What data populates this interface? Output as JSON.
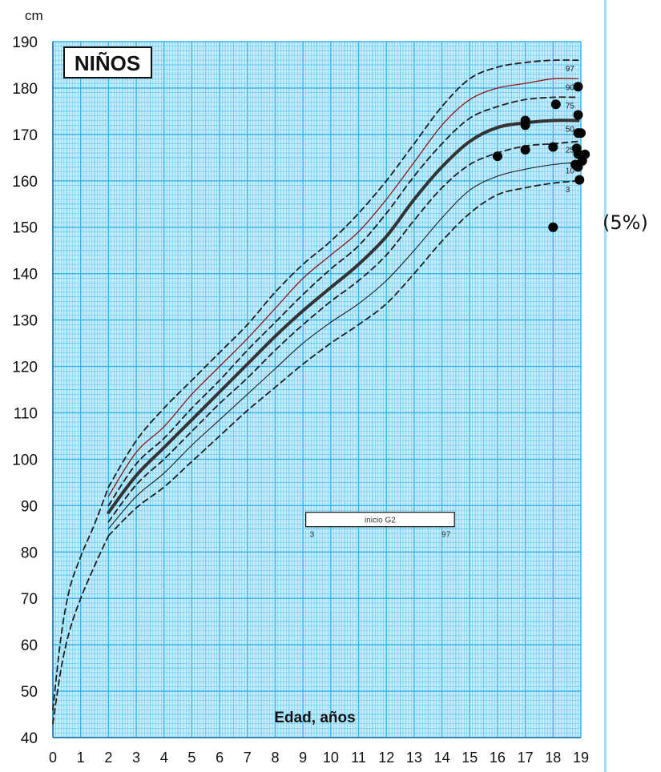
{
  "title": "NIÑOS",
  "side_label": "(5%)",
  "chart_data": {
    "type": "line",
    "title": "NIÑOS",
    "xlabel": "Edad, años",
    "ylabel": "cm",
    "xlim": [
      0,
      19
    ],
    "ylim": [
      40,
      190
    ],
    "xticks": [
      0,
      1,
      2,
      3,
      4,
      5,
      6,
      7,
      8,
      9,
      10,
      11,
      12,
      13,
      14,
      15,
      16,
      17,
      18,
      19
    ],
    "yticks": [
      40,
      50,
      60,
      70,
      80,
      90,
      100,
      110,
      120,
      130,
      140,
      150,
      160,
      170,
      180,
      190
    ],
    "grid": true,
    "colors": {
      "grid": "#33b4ea",
      "grid_minor": "#62c9f2",
      "p90": "#8b1a1a",
      "line": "#1f1f1f"
    },
    "series": [
      {
        "name": "97",
        "style": "dashed",
        "points": [
          [
            2,
            94
          ],
          [
            3,
            104
          ],
          [
            4,
            111
          ],
          [
            5,
            117
          ],
          [
            6,
            123
          ],
          [
            7,
            129
          ],
          [
            8,
            136
          ],
          [
            9,
            142
          ],
          [
            10,
            147
          ],
          [
            11,
            153
          ],
          [
            12,
            160
          ],
          [
            13,
            168
          ],
          [
            14,
            176
          ],
          [
            15,
            182
          ],
          [
            16,
            184.5
          ],
          [
            17,
            185.5
          ],
          [
            18,
            186
          ],
          [
            18.9,
            186
          ]
        ]
      },
      {
        "name": "90",
        "style": "thin-red",
        "points": [
          [
            2,
            92
          ],
          [
            3,
            101.5
          ],
          [
            4,
            107
          ],
          [
            5,
            114
          ],
          [
            6,
            120
          ],
          [
            7,
            126
          ],
          [
            8,
            132.5
          ],
          [
            9,
            139
          ],
          [
            10,
            144
          ],
          [
            11,
            149
          ],
          [
            12,
            156
          ],
          [
            13,
            164
          ],
          [
            14,
            172
          ],
          [
            15,
            177.5
          ],
          [
            16,
            180
          ],
          [
            17,
            181
          ],
          [
            18,
            182
          ],
          [
            18.9,
            182
          ]
        ]
      },
      {
        "name": "75",
        "style": "dashed",
        "points": [
          [
            2,
            90
          ],
          [
            3,
            99
          ],
          [
            4,
            104.5
          ],
          [
            5,
            111
          ],
          [
            6,
            117
          ],
          [
            7,
            123.5
          ],
          [
            8,
            129.5
          ],
          [
            9,
            135.5
          ],
          [
            10,
            141
          ],
          [
            11,
            146
          ],
          [
            12,
            153
          ],
          [
            13,
            161
          ],
          [
            14,
            168
          ],
          [
            15,
            173.5
          ],
          [
            16,
            176
          ],
          [
            17,
            177.5
          ],
          [
            18,
            178
          ],
          [
            18.9,
            178
          ]
        ]
      },
      {
        "name": "50",
        "style": "bold",
        "points": [
          [
            2,
            88.5
          ],
          [
            3,
            96.5
          ],
          [
            4,
            102.5
          ],
          [
            5,
            108.5
          ],
          [
            6,
            114.5
          ],
          [
            7,
            120.5
          ],
          [
            8,
            126.5
          ],
          [
            9,
            132
          ],
          [
            10,
            137
          ],
          [
            11,
            142
          ],
          [
            12,
            148
          ],
          [
            13,
            156
          ],
          [
            14,
            163
          ],
          [
            15,
            168.5
          ],
          [
            16,
            171.5
          ],
          [
            17,
            172.5
          ],
          [
            18,
            173
          ],
          [
            18.9,
            173
          ]
        ]
      },
      {
        "name": "25",
        "style": "dashed",
        "points": [
          [
            2,
            86.5
          ],
          [
            3,
            94.5
          ],
          [
            4,
            100
          ],
          [
            5,
            106
          ],
          [
            6,
            112
          ],
          [
            7,
            117.5
          ],
          [
            8,
            123.5
          ],
          [
            9,
            129
          ],
          [
            10,
            134
          ],
          [
            11,
            138.5
          ],
          [
            12,
            144
          ],
          [
            13,
            151.5
          ],
          [
            14,
            158.5
          ],
          [
            15,
            163.5
          ],
          [
            16,
            166
          ],
          [
            17,
            167.5
          ],
          [
            18,
            168
          ],
          [
            18.9,
            168.5
          ]
        ]
      },
      {
        "name": "10",
        "style": "thin",
        "points": [
          [
            2,
            85
          ],
          [
            3,
            92
          ],
          [
            4,
            97
          ],
          [
            5,
            103
          ],
          [
            6,
            108.5
          ],
          [
            7,
            114
          ],
          [
            8,
            119.5
          ],
          [
            9,
            125
          ],
          [
            10,
            129.5
          ],
          [
            11,
            133.5
          ],
          [
            12,
            138.5
          ],
          [
            13,
            145
          ],
          [
            14,
            152
          ],
          [
            15,
            158
          ],
          [
            16,
            161
          ],
          [
            17,
            162.5
          ],
          [
            18,
            163.5
          ],
          [
            18.9,
            164
          ]
        ]
      },
      {
        "name": "3",
        "style": "dashed",
        "points": [
          [
            2,
            83.5
          ],
          [
            3,
            89.5
          ],
          [
            4,
            94
          ],
          [
            5,
            99.5
          ],
          [
            6,
            105
          ],
          [
            7,
            110.5
          ],
          [
            8,
            115.5
          ],
          [
            9,
            120.5
          ],
          [
            10,
            125
          ],
          [
            11,
            129
          ],
          [
            12,
            133.5
          ],
          [
            13,
            140
          ],
          [
            14,
            147
          ],
          [
            15,
            153
          ],
          [
            16,
            157
          ],
          [
            17,
            158.5
          ],
          [
            18,
            159.5
          ],
          [
            18.9,
            160
          ]
        ]
      },
      {
        "name": "infant-upper",
        "style": "dashed",
        "points": [
          [
            0,
            46
          ],
          [
            0.3,
            62
          ],
          [
            0.6,
            72
          ],
          [
            1,
            79
          ],
          [
            1.5,
            86
          ],
          [
            2,
            94
          ]
        ]
      },
      {
        "name": "infant-lower",
        "style": "dashed",
        "points": [
          [
            0,
            43
          ],
          [
            0.3,
            55
          ],
          [
            0.6,
            63
          ],
          [
            1,
            70
          ],
          [
            1.5,
            77
          ],
          [
            2,
            83.5
          ]
        ]
      }
    ],
    "scatter": [
      [
        16,
        165.3
      ],
      [
        17,
        173
      ],
      [
        17,
        172
      ],
      [
        17,
        166.7
      ],
      [
        18,
        167.3
      ],
      [
        18.1,
        176.5
      ],
      [
        18,
        150
      ],
      [
        18.9,
        180.3
      ],
      [
        18.9,
        174.2
      ],
      [
        18.9,
        170.3
      ],
      [
        19,
        170.3
      ],
      [
        18.85,
        167
      ],
      [
        18.9,
        165.8
      ],
      [
        19.15,
        165.7
      ],
      [
        18.8,
        163.5
      ],
      [
        18.9,
        163
      ],
      [
        19.05,
        164.3
      ],
      [
        18.95,
        160.2
      ]
    ],
    "annotation": {
      "text": "inicio G2",
      "left_label": "3",
      "right_label": "97",
      "x_start": 9.1,
      "x_end": 14.45,
      "y": 87
    }
  }
}
